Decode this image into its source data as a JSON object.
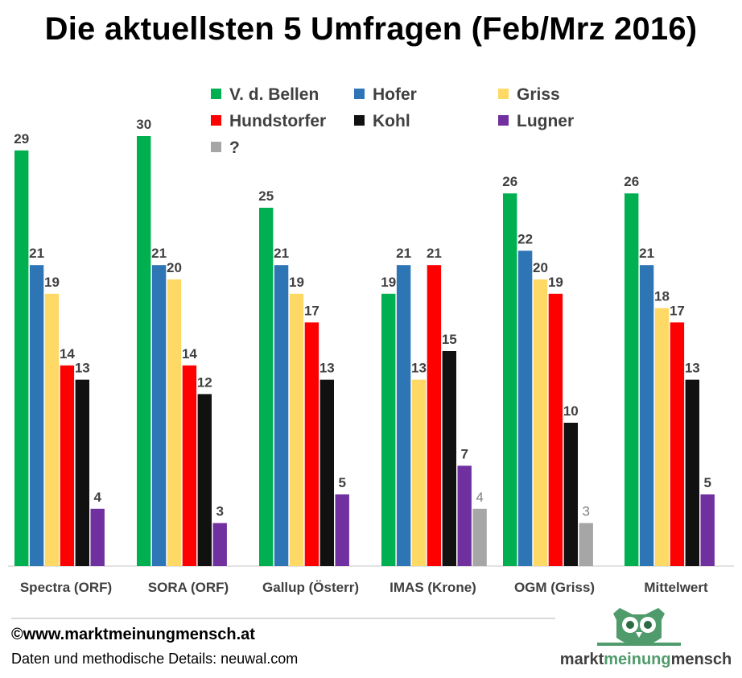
{
  "chart_data": {
    "type": "bar",
    "title": "Die aktuellsten 5 Umfragen (Feb/Mrz 2016)",
    "categories": [
      "Spectra (ORF)",
      "SORA (ORF)",
      "Gallup (Österr)",
      "IMAS (Krone)",
      "OGM (Griss)",
      "Mittelwert"
    ],
    "series": [
      {
        "name": "V. d. Bellen",
        "color": "#00b050",
        "values": [
          29,
          30,
          25,
          19,
          26,
          26
        ]
      },
      {
        "name": "Hofer",
        "color": "#2e75b6",
        "values": [
          21,
          21,
          21,
          21,
          22,
          21
        ]
      },
      {
        "name": "Griss",
        "color": "#ffd966",
        "values": [
          19,
          20,
          19,
          13,
          20,
          18
        ]
      },
      {
        "name": "Hundstorfer",
        "color": "#ff0000",
        "values": [
          14,
          14,
          17,
          21,
          19,
          17
        ]
      },
      {
        "name": "Kohl",
        "color": "#111111",
        "values": [
          13,
          12,
          13,
          15,
          10,
          13
        ]
      },
      {
        "name": "Lugner",
        "color": "#7030a0",
        "values": [
          4,
          3,
          5,
          7,
          null,
          5
        ]
      },
      {
        "name": "?",
        "color": "#a6a6a6",
        "values": [
          null,
          null,
          null,
          4,
          3,
          null
        ]
      }
    ],
    "ylim": [
      0,
      30
    ],
    "grid": false,
    "legend_position": "top"
  },
  "footer": {
    "copyright": "©www.marktmeinungmensch.at",
    "source": "Daten und methodische Details: neuwal.com"
  },
  "logo": {
    "part1": "markt",
    "part2": "meinung",
    "part3": "mensch",
    "color": "#4f9b6b"
  }
}
